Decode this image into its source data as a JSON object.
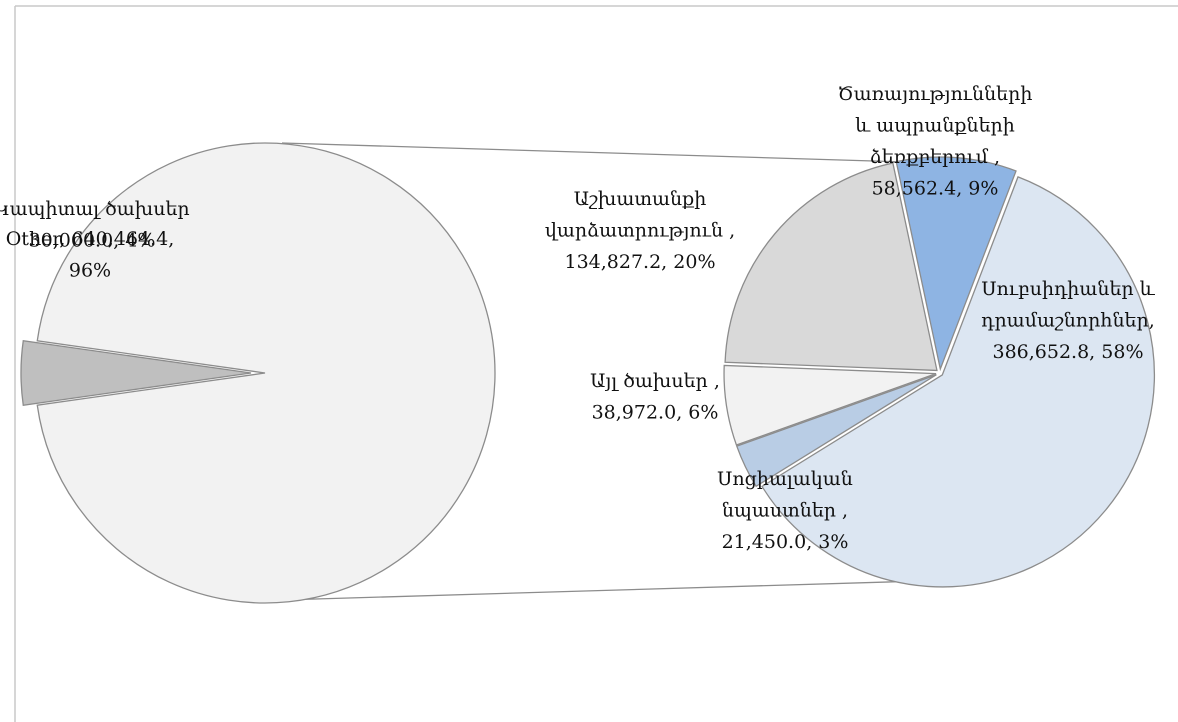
{
  "chart_data": {
    "type": "pie_of_pie",
    "pies": [
      {
        "slices": [
          {
            "label_lines": [
              "Կապիտալ ծախսեր",
              "30,000.0, 4%"
            ],
            "value": 30000.0,
            "color": "#bfbfbf"
          },
          {
            "label_lines": [
              "Other, 640,464.4,",
              "96%"
            ],
            "value": 640464.4,
            "color": "#f2f2f2"
          }
        ]
      },
      {
        "slices": [
          {
            "label_lines": [
              "Ծառայությունների",
              "և ապրանքների",
              "ձեռքբերում ,",
              "58,562.4, 9%"
            ],
            "value": 58562.4,
            "color": "#8eb4e3"
          },
          {
            "label_lines": [
              "Սուբսիդիաներ և",
              "դրամաշնորհներ,",
              "386,652.8, 58%"
            ],
            "value": 386652.8,
            "color": "#dce6f2"
          },
          {
            "label_lines": [
              "Սոցիալական",
              "նպաստներ ,",
              "21,450.0, 3%"
            ],
            "value": 21450.0,
            "color": "#b9cde5"
          },
          {
            "label_lines": [
              "Այլ ծախսեր ,",
              "38,972.0, 6%"
            ],
            "value": 38972.0,
            "color": "#f2f2f2"
          },
          {
            "label_lines": [
              "Աշխատանքի",
              "վարձատրություն ,",
              "134,827.2, 20%"
            ],
            "value": 134827.2,
            "color": "#d9d9d9"
          }
        ]
      }
    ]
  }
}
